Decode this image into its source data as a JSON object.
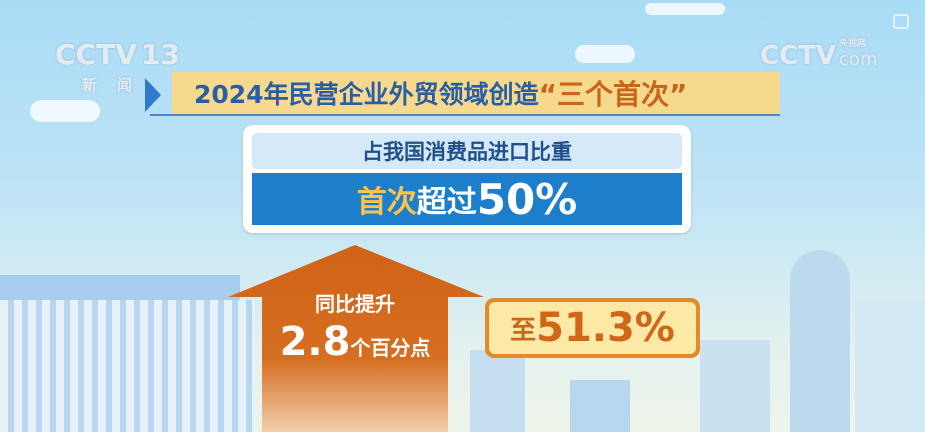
{
  "logo_left": {
    "channel": "CCTV",
    "number": "13",
    "sub": [
      "新",
      "闻"
    ]
  },
  "logo_right": {
    "brand": "CCTV",
    "cn": "央视网",
    "domain": "com"
  },
  "title": {
    "main": "2024年民营企业外贸领域创造",
    "highlight": "“三个首次”"
  },
  "card": {
    "header": "占我国消费品进口比重",
    "first": "首次",
    "mid": "超过",
    "value": "50%"
  },
  "arrow": {
    "line1": "同比提升",
    "number": "2.8",
    "unit": "个百分点"
  },
  "badge": {
    "prefix": "至",
    "value": "51.3%"
  },
  "colors": {
    "title_bg": "#f6d98c",
    "title_text": "#285ea6",
    "accent_orange": "#d0661a",
    "band_blue": "#1d7fcb"
  }
}
